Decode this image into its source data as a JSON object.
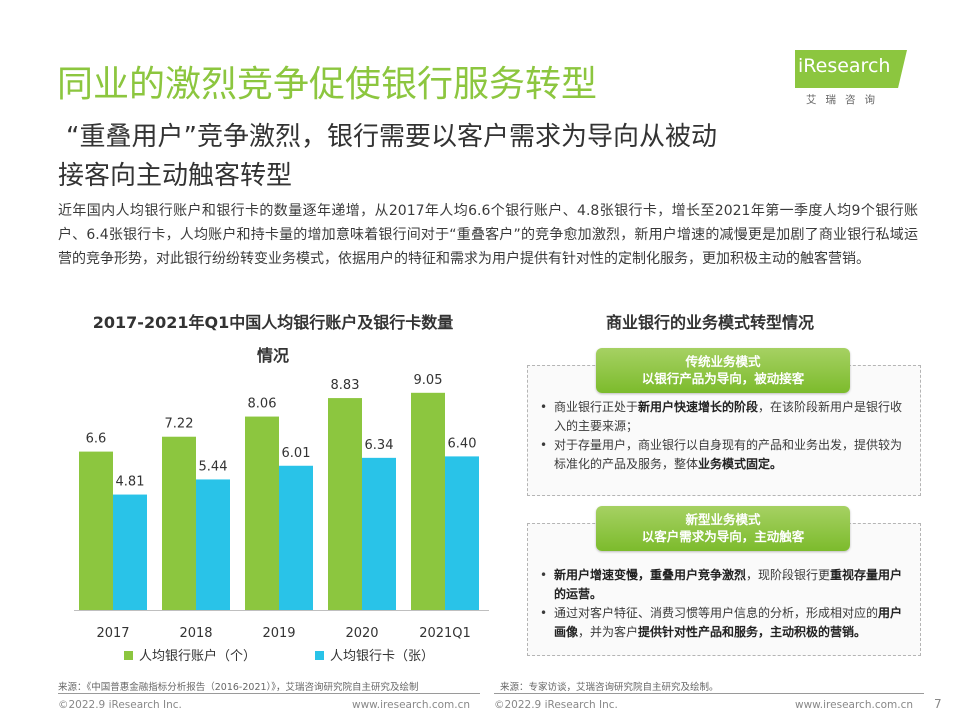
{
  "page": {
    "title": "同业的激烈竞争促使银行服务转型",
    "subtitle_line1": "“重叠用户”竞争激烈，银行需要以客户需求为导向从被动",
    "subtitle_line2": "接客向主动触客转型",
    "intro": "近年国内人均银行账户和银行卡的数量逐年递增，从2017年人均6.6个银行账户、4.8张银行卡，增长至2021年第一季度人均9个银行账户、6.4张银行卡，人均账户和持卡量的增加意味着银行间对于“重叠客户”的竞争愈加激烈，新用户增速的减慢更是加剧了商业银行私域运营的竞争形势，对此银行纷纷转变业务模式，依据用户的特征和需求为用户提供有针对性的定制化服务，更加积极主动的触客营销。",
    "page_number": "7"
  },
  "logo": {
    "word": "iResearch",
    "sub": "艾瑞咨询"
  },
  "chart_data": {
    "type": "bar",
    "title": "2017-2021年Q1中国人均银行账户及银行卡数量情况",
    "categories": [
      "2017",
      "2018",
      "2019",
      "2020",
      "2021Q1"
    ],
    "series": [
      {
        "name": "人均银行账户（个）",
        "color": "#8cc63f",
        "values": [
          6.6,
          7.22,
          8.06,
          8.83,
          9.05
        ]
      },
      {
        "name": "人均银行卡（张）",
        "color": "#29c3e8",
        "values": [
          4.81,
          5.44,
          6.01,
          6.34,
          6.4
        ]
      }
    ],
    "value_labels": [
      [
        "6.6",
        "7.22",
        "8.06",
        "8.83",
        "9.05"
      ],
      [
        "4.81",
        "5.44",
        "6.01",
        "6.34",
        "6.40"
      ]
    ],
    "ylim": [
      0,
      10
    ],
    "grid": false,
    "legend": "bottom"
  },
  "models": {
    "title": "商业银行的业务模式转型情况",
    "traditional": {
      "name": "传统业务模式",
      "tagline": "以银行产品为导向，被动接客",
      "bullets": [
        {
          "parts": [
            {
              "t": "商业银行正处于"
            },
            {
              "t": "新用户快速增长的阶段",
              "b": true
            },
            {
              "t": "，在该阶段新用户是银行收入的主要来源；"
            }
          ]
        },
        {
          "parts": [
            {
              "t": "对于存量用户，商业银行以自身现有的产品和业务出发，提供较为标准化的产品及服务，整体"
            },
            {
              "t": "业务模式固定。",
              "b": true
            }
          ]
        }
      ]
    },
    "new": {
      "name": "新型业务模式",
      "tagline": "以客户需求为导向，主动触客",
      "bullets": [
        {
          "parts": [
            {
              "t": "新用户增速变慢，重叠用户竞争激烈",
              "b": true
            },
            {
              "t": "，现阶段银行更"
            },
            {
              "t": "重视存量用户的运营。",
              "b": true
            }
          ]
        },
        {
          "parts": [
            {
              "t": "通过对客户特征、消费习惯等用户信息的分析，形成相对应的"
            },
            {
              "t": "用户画像",
              "b": true
            },
            {
              "t": "，并为客户"
            },
            {
              "t": "提供针对性产品和服务，主动积极的营销。",
              "b": true
            }
          ]
        }
      ]
    }
  },
  "sources": {
    "left": "来源：《中国普惠金融指标分析报告（2016-2021）》，艾瑞咨询研究院自主研究及绘制",
    "right": "来源：专家访谈，艾瑞咨询研究院自主研究及绘制。"
  },
  "footer": {
    "copyright": "©2022.9 iResearch Inc.",
    "website": "www.iresearch.com.cn"
  }
}
